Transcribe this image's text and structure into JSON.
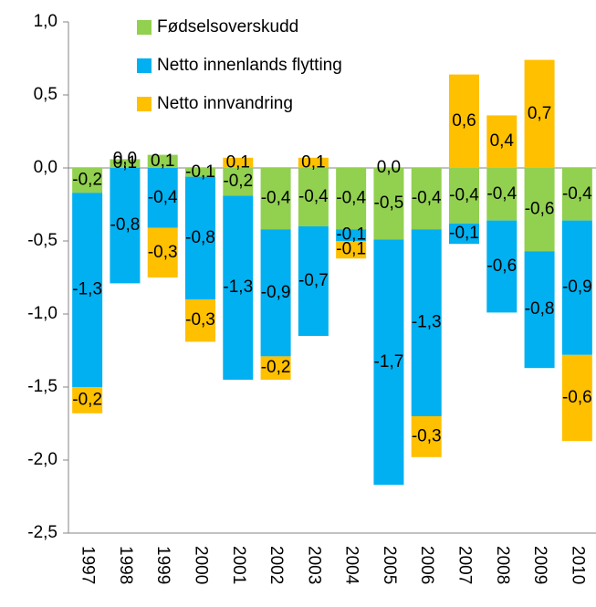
{
  "chart_data": {
    "type": "stacked_bar",
    "categories": [
      "1997",
      "1998",
      "1999",
      "2000",
      "2001",
      "2002",
      "2003",
      "2004",
      "2005",
      "2006",
      "2007",
      "2008",
      "2009",
      "2010"
    ],
    "series": [
      {
        "name": "Fødselsoverskudd",
        "color": "#92d050",
        "values": [
          -0.17,
          0.06,
          0.09,
          -0.06,
          -0.19,
          -0.42,
          -0.4,
          -0.42,
          -0.49,
          -0.42,
          -0.38,
          -0.36,
          -0.57,
          -0.36
        ],
        "value_labels": [
          "-0,2",
          "0,1",
          "0,1",
          "-0,1",
          "-0,2",
          "-0,4",
          "-0,4",
          "-0,4",
          "-0,5",
          "-0,4",
          "-0,4",
          "-0,4",
          "-0,6",
          "-0,4"
        ]
      },
      {
        "name": "Netto innenlands flytting",
        "color": "#00b0f0",
        "values": [
          -1.33,
          -0.79,
          -0.41,
          -0.84,
          -1.26,
          -0.87,
          -0.75,
          -0.08,
          -1.68,
          -1.28,
          -0.14,
          -0.63,
          -0.8,
          -0.92
        ],
        "value_labels": [
          "-1,3",
          "-0,8",
          "-0,4",
          "-0,8",
          "-1,3",
          "-0,9",
          "-0,7",
          "-0,1",
          "-1,7",
          "-1,3",
          "-0,1",
          "-0,6",
          "-0,8",
          "-0,9"
        ]
      },
      {
        "name": "Netto innvandring",
        "color": "#ffc000",
        "values": [
          -0.18,
          0.0,
          -0.34,
          -0.29,
          0.07,
          -0.16,
          0.07,
          -0.12,
          0.0,
          -0.28,
          0.64,
          0.36,
          0.74,
          -0.59
        ],
        "value_labels": [
          "-0,2",
          "0,0",
          "-0,3",
          "-0,3",
          "0,1",
          "-0,2",
          "0,1",
          "-0,1",
          "0,0",
          "-0,3",
          "0,6",
          "0,4",
          "0,7",
          "-0,6"
        ]
      }
    ],
    "ylim": [
      -2.5,
      1.0
    ],
    "yticks": [
      {
        "value": -2.5,
        "label": "-2,5"
      },
      {
        "value": -2.0,
        "label": "-2,0"
      },
      {
        "value": -1.5,
        "label": "-1,5"
      },
      {
        "value": -1.0,
        "label": "-1,0"
      },
      {
        "value": -0.5,
        "label": "-0,5"
      },
      {
        "value": 0.0,
        "label": "0,0"
      },
      {
        "value": 0.5,
        "label": "0,5"
      },
      {
        "value": 1.0,
        "label": "1,0"
      }
    ],
    "legend": "top-left",
    "grid": false
  }
}
